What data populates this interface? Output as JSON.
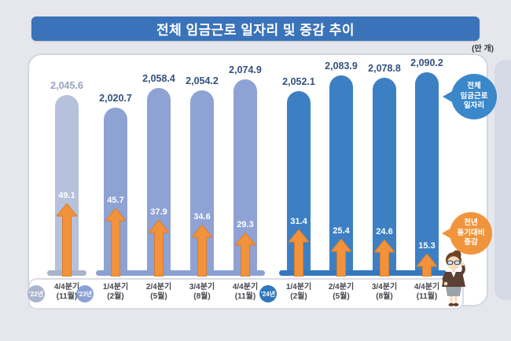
{
  "header": {
    "title": "전체 임금근로 일자리 및 증감 추이"
  },
  "unit_label": "(만 개)",
  "callouts": {
    "jobs_bubble": {
      "lines": [
        "전체",
        "임금근로",
        "일자리"
      ],
      "color": "#3a87ca"
    },
    "change_bubble": {
      "lines": [
        "전년",
        "동기대비",
        "증감"
      ],
      "color": "#f0953c"
    }
  },
  "chart_data": {
    "type": "bar",
    "title": "전체 임금근로 일자리 및 증감 추이",
    "unit": "만 개",
    "legend_position": "right-callouts",
    "grid": false,
    "categories": [
      {
        "year": "'22년",
        "quarter": "4/4분기",
        "month": "(11월)",
        "group": 0
      },
      {
        "year": "'23년",
        "quarter": "1/4분기",
        "month": "(2월)",
        "group": 1
      },
      {
        "year": null,
        "quarter": "2/4분기",
        "month": "(5월)",
        "group": 1
      },
      {
        "year": null,
        "quarter": "3/4분기",
        "month": "(8월)",
        "group": 1
      },
      {
        "year": null,
        "quarter": "4/4분기",
        "month": "(11월)",
        "group": 1
      },
      {
        "year": "'24년",
        "quarter": "1/4분기",
        "month": "(2월)",
        "group": 2
      },
      {
        "year": null,
        "quarter": "2/4분기",
        "month": "(5월)",
        "group": 2
      },
      {
        "year": null,
        "quarter": "3/4분기",
        "month": "(8월)",
        "group": 2
      },
      {
        "year": null,
        "quarter": "4/4분기",
        "month": "(11월)",
        "group": 2
      }
    ],
    "series": [
      {
        "name": "전체 임금근로 일자리",
        "values": [
          2045.6,
          2020.7,
          2058.4,
          2054.2,
          2074.9,
          2052.1,
          2083.9,
          2078.8,
          2090.2
        ]
      },
      {
        "name": "전년 동기대비 증감",
        "values": [
          49.1,
          45.7,
          37.9,
          34.6,
          29.3,
          31.4,
          25.4,
          24.6,
          15.3
        ]
      }
    ],
    "groups": [
      {
        "year_label": "'22년",
        "bar_color": "#b6c1db",
        "strip_color": "#a8b3cd",
        "badge_color": "#a9b4cf",
        "value_color": "#97a3bf"
      },
      {
        "year_label": "'23년",
        "bar_color": "#8ea2d4",
        "strip_color": "#8ba0d2",
        "badge_color": "#8ca0d4",
        "value_color": "#33517e"
      },
      {
        "year_label": "'24년",
        "bar_color": "#3c80c3",
        "strip_color": "#3577bd",
        "badge_color": "#2f78be",
        "value_color": "#33517e"
      }
    ],
    "change_arrow": {
      "fill": "#f2923c",
      "stroke": "#db7e28",
      "text_color": "#ffffff"
    }
  }
}
